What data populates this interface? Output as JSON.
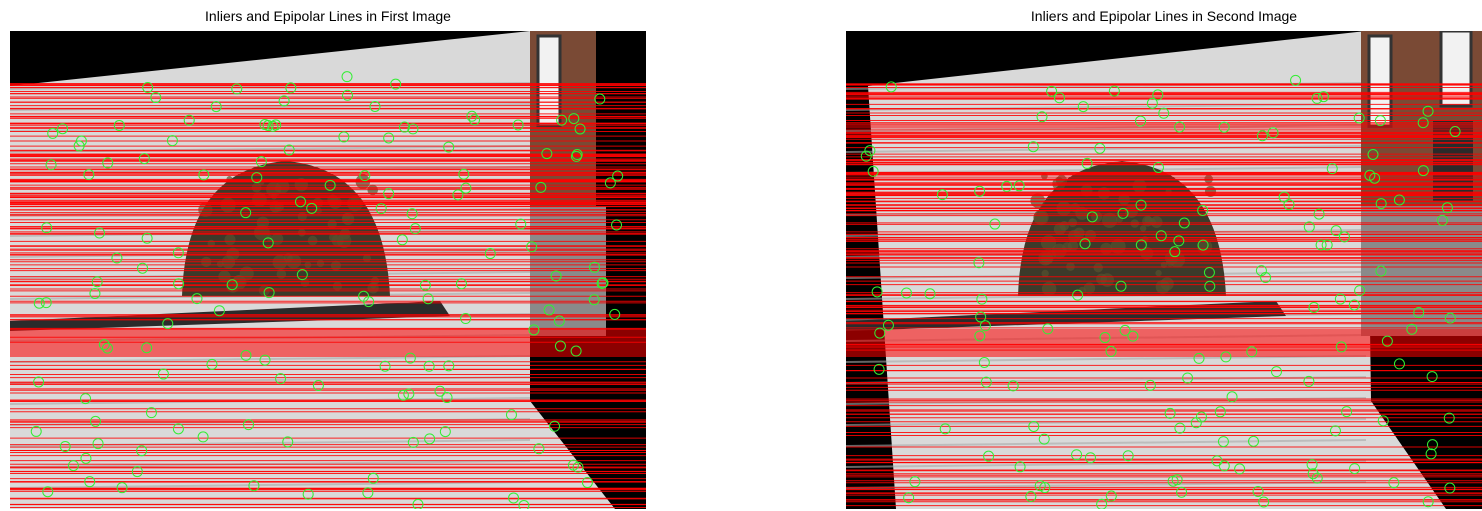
{
  "figure": {
    "left_panel": {
      "title": "Inliers and Epipolar Lines in First Image"
    },
    "right_panel": {
      "title": "Inliers and Epipolar Lines in Second Image"
    }
  },
  "colors": {
    "background": "#ffffff",
    "image_border": "#000000",
    "epipolar_line": "#ff0000",
    "inlier_marker": "#33ee33",
    "wall": "#d9d9d9",
    "wall_shadow": "#a9a9a9",
    "shrub": "#3c3a2a",
    "shrub_highlight": "#56512f",
    "building_brick": "#7a4a35",
    "window": "#f2f2f2",
    "sidewalk": "#8a8a8a"
  },
  "icons": {
    "inlier_marker": "circle-outline",
    "epipolar_line": "horizontal-line"
  }
}
